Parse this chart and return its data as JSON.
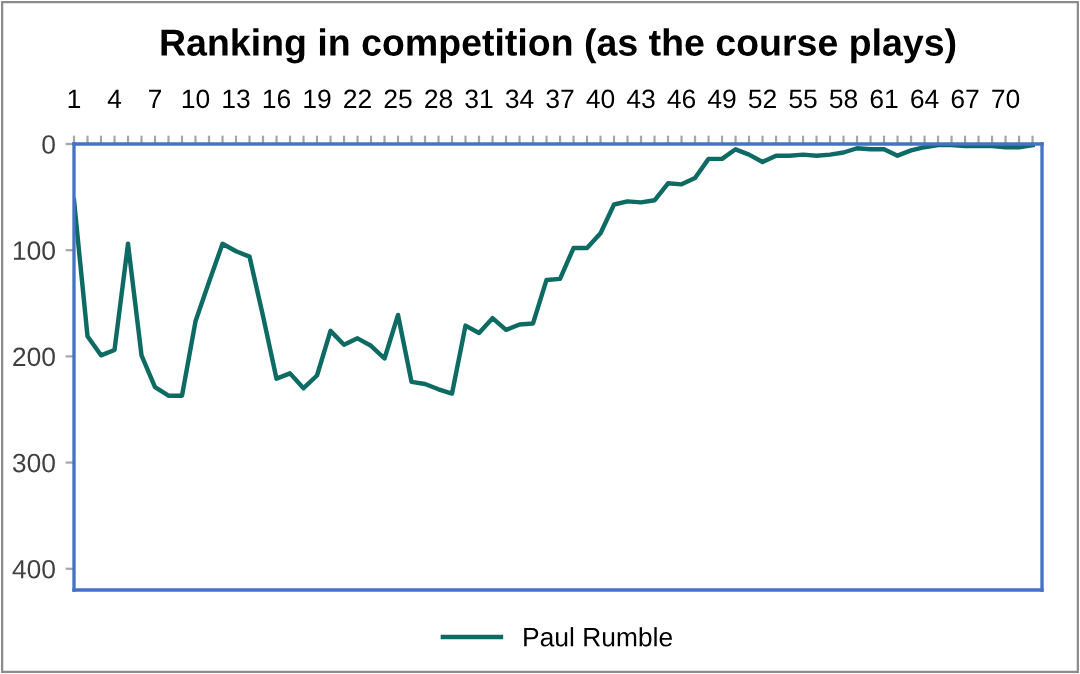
{
  "chart_data": {
    "type": "line",
    "title": "Ranking in competition (as the course plays)",
    "categories": [
      "1",
      null,
      null,
      "4",
      null,
      null,
      "7",
      null,
      null,
      "10",
      null,
      null,
      "13",
      null,
      null,
      "16",
      null,
      null,
      "19",
      null,
      null,
      "22",
      null,
      null,
      "25",
      null,
      null,
      "28",
      null,
      null,
      "31",
      null,
      null,
      "34",
      null,
      null,
      "37",
      null,
      null,
      "40",
      null,
      null,
      "43",
      null,
      null,
      "46",
      null,
      null,
      "49",
      null,
      null,
      "52",
      null,
      null,
      "55",
      null,
      null,
      "58",
      null,
      null,
      "61",
      null,
      null,
      "64",
      null,
      null,
      "67",
      null,
      null,
      "70",
      null,
      null
    ],
    "series": [
      {
        "name": "Paul Rumble",
        "color": "#0e6b64",
        "values": [
          53,
          181,
          199,
          194,
          94,
          199,
          229,
          237,
          237,
          167,
          130,
          94,
          101,
          106,
          162,
          221,
          216,
          230,
          218,
          176,
          189,
          183,
          190,
          202,
          161,
          224,
          226,
          231,
          235,
          171,
          178,
          164,
          175,
          170,
          169,
          128,
          127,
          98,
          98,
          84,
          57,
          54,
          55,
          53,
          37,
          38,
          32,
          14,
          14,
          5,
          10,
          17,
          11,
          11,
          10,
          11,
          10,
          8,
          4,
          5,
          5,
          11,
          6,
          3,
          1,
          1,
          2,
          2,
          2,
          3,
          3,
          1
        ]
      }
    ],
    "ylim": [
      420,
      0
    ],
    "yticks": [
      0,
      100,
      200,
      300,
      400
    ],
    "grid": false,
    "legend": "bottom",
    "marker": "none",
    "line_style": "solid"
  }
}
